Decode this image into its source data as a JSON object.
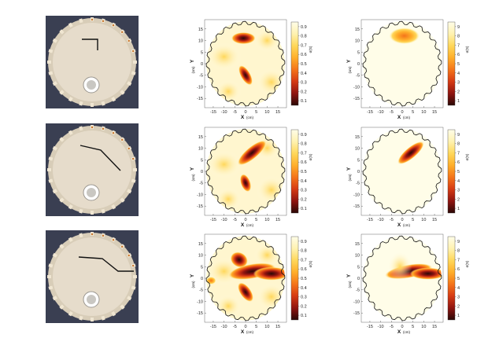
{
  "figure": {
    "rows": [
      {
        "photo": {
          "crack_description": "short crack from center upward-left"
        },
        "maps": [
          {
            "colorbar_ticks": [
              "0.9",
              "0.8",
              "0.7",
              "0.6",
              "0.5",
              "0.4",
              "0.3",
              "0.2",
              "0.1"
            ],
            "colorbar_unit": "σ(S)",
            "max": 0.9
          },
          {
            "colorbar_ticks": [
              "9",
              "8",
              "7",
              "6",
              "5",
              "4",
              "3",
              "2",
              "1"
            ],
            "colorbar_unit": "σ(S)",
            "max": 9
          }
        ]
      },
      {
        "photo": {
          "crack_description": "crack from left, diagonal down-right"
        },
        "maps": [
          {
            "colorbar_ticks": [
              "0.9",
              "0.8",
              "0.7",
              "0.6",
              "0.5",
              "0.4",
              "0.3",
              "0.2",
              "0.1"
            ],
            "colorbar_unit": "σ(S)",
            "max": 0.9
          },
          {
            "colorbar_ticks": [
              "9",
              "8",
              "7",
              "6",
              "5",
              "4",
              "3",
              "2",
              "1"
            ],
            "colorbar_unit": "σ(S)",
            "max": 9
          }
        ]
      },
      {
        "photo": {
          "crack_description": "long crack from left across to right edge"
        },
        "maps": [
          {
            "colorbar_ticks": [
              "0.9",
              "0.8",
              "0.7",
              "0.6",
              "0.5",
              "0.4",
              "0.3",
              "0.2",
              "0.1"
            ],
            "colorbar_unit": "σ(S)",
            "max": 0.9
          },
          {
            "colorbar_ticks": [
              "9",
              "8",
              "7",
              "6",
              "5",
              "4",
              "3",
              "2",
              "1"
            ],
            "colorbar_unit": "σ(S)",
            "max": 9
          }
        ]
      }
    ],
    "axes": {
      "x_label": "X",
      "x_unit": "(cm)",
      "y_label": "Y",
      "y_unit": "(cm)",
      "x_ticks": [
        "-15",
        "-10",
        "-5",
        "0",
        "5",
        "10",
        "15"
      ],
      "y_ticks": [
        "15",
        "10",
        "5",
        "0",
        "-5",
        "-10",
        "-15"
      ]
    },
    "colormap": [
      "#fffde8",
      "#fff2b0",
      "#ffd75a",
      "#ffae2a",
      "#f4741a",
      "#d53a14",
      "#8f1410",
      "#2a0806"
    ],
    "photo_colors": {
      "background": "#3a3f52",
      "plate": "#e6dccb",
      "rim": "#d8cdb8",
      "crack": "#111111",
      "hole": "#c9c7c2"
    }
  }
}
